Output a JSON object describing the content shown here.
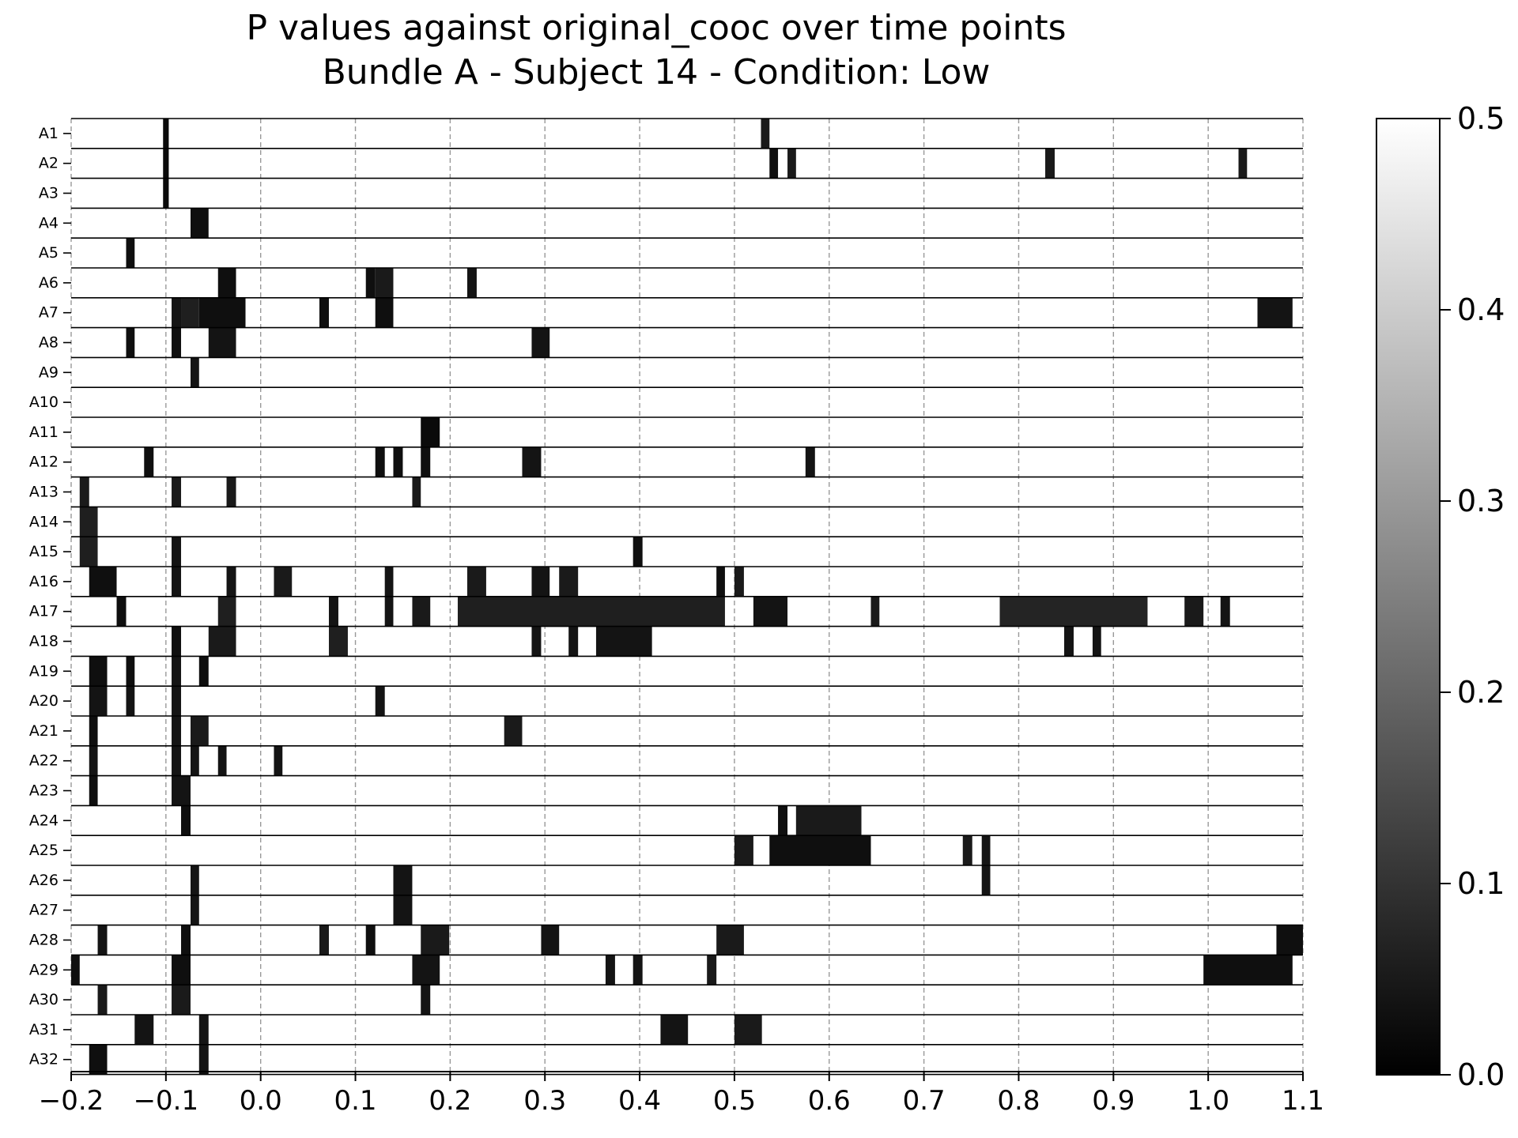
{
  "chart_data": {
    "type": "heatmap",
    "title": "P values against original_cooc over time points",
    "subtitle": "Bundle A - Subject 14 - Condition: Low",
    "xlabel": "",
    "ylabel": "",
    "xlim": [
      -0.2,
      1.1
    ],
    "xticks": [
      -0.2,
      -0.1,
      0.0,
      0.1,
      0.2,
      0.3,
      0.4,
      0.5,
      0.6,
      0.7,
      0.8,
      0.9,
      1.0,
      1.1
    ],
    "xtick_labels": [
      "−0.2",
      "−0.1",
      "0.0",
      "0.1",
      "0.2",
      "0.3",
      "0.4",
      "0.5",
      "0.6",
      "0.7",
      "0.8",
      "0.9",
      "1.0",
      "1.1"
    ],
    "grid": "vertical dashed",
    "colormap": "gray",
    "color_min": "#000000",
    "color_max": "#ffffff",
    "colorbar": {
      "range": [
        0.0,
        0.5
      ],
      "ticks": [
        0.0,
        0.1,
        0.2,
        0.3,
        0.4,
        0.5
      ],
      "tick_labels": [
        "0.0",
        "0.1",
        "0.2",
        "0.3",
        "0.4",
        "0.5"
      ]
    },
    "rows": [
      {
        "label": "A1",
        "cells": [
          [
            -0.103,
            -0.097,
            0.02
          ],
          [
            0.528,
            0.537,
            0.05
          ]
        ]
      },
      {
        "label": "A2",
        "cells": [
          [
            -0.103,
            -0.097,
            0.02
          ],
          [
            0.537,
            0.546,
            0.03
          ],
          [
            0.556,
            0.565,
            0.05
          ],
          [
            0.828,
            0.838,
            0.05
          ],
          [
            1.032,
            1.041,
            0.05
          ]
        ]
      },
      {
        "label": "A3",
        "cells": [
          [
            -0.103,
            -0.097,
            0.02
          ]
        ]
      },
      {
        "label": "A4",
        "cells": [
          [
            -0.074,
            -0.055,
            0.03
          ]
        ]
      },
      {
        "label": "A5",
        "cells": [
          [
            -0.142,
            -0.133,
            0.03
          ]
        ]
      },
      {
        "label": "A6",
        "cells": [
          [
            -0.045,
            -0.026,
            0.03
          ],
          [
            0.111,
            0.121,
            0.03
          ],
          [
            0.121,
            0.14,
            0.05
          ],
          [
            0.218,
            0.228,
            0.04
          ]
        ]
      },
      {
        "label": "A7",
        "cells": [
          [
            -0.094,
            -0.084,
            0.04
          ],
          [
            -0.084,
            -0.065,
            0.06
          ],
          [
            -0.065,
            -0.016,
            0.03
          ],
          [
            0.062,
            0.072,
            0.03
          ],
          [
            0.121,
            0.14,
            0.03
          ],
          [
            1.052,
            1.089,
            0.04
          ]
        ]
      },
      {
        "label": "A8",
        "cells": [
          [
            -0.142,
            -0.133,
            0.03
          ],
          [
            -0.094,
            -0.084,
            0.03
          ],
          [
            -0.055,
            -0.026,
            0.04
          ],
          [
            0.286,
            0.305,
            0.04
          ]
        ]
      },
      {
        "label": "A9",
        "cells": [
          [
            -0.074,
            -0.065,
            0.04
          ]
        ]
      },
      {
        "label": "A10",
        "cells": []
      },
      {
        "label": "A11",
        "cells": [
          [
            0.169,
            0.189,
            0.02
          ]
        ]
      },
      {
        "label": "A12",
        "cells": [
          [
            -0.123,
            -0.113,
            0.03
          ],
          [
            0.121,
            0.131,
            0.03
          ],
          [
            0.14,
            0.15,
            0.03
          ],
          [
            0.169,
            0.179,
            0.03
          ],
          [
            0.276,
            0.296,
            0.04
          ],
          [
            0.575,
            0.585,
            0.04
          ]
        ]
      },
      {
        "label": "A13",
        "cells": [
          [
            -0.191,
            -0.181,
            0.05
          ],
          [
            -0.094,
            -0.084,
            0.05
          ],
          [
            -0.036,
            -0.026,
            0.05
          ],
          [
            0.16,
            0.169,
            0.05
          ]
        ]
      },
      {
        "label": "A14",
        "cells": [
          [
            -0.191,
            -0.172,
            0.06
          ]
        ]
      },
      {
        "label": "A15",
        "cells": [
          [
            -0.191,
            -0.172,
            0.06
          ],
          [
            -0.094,
            -0.084,
            0.04
          ],
          [
            0.393,
            0.403,
            0.03
          ]
        ]
      },
      {
        "label": "A16",
        "cells": [
          [
            -0.181,
            -0.152,
            0.03
          ],
          [
            -0.094,
            -0.084,
            0.04
          ],
          [
            -0.036,
            -0.026,
            0.04
          ],
          [
            0.014,
            0.033,
            0.05
          ],
          [
            0.131,
            0.14,
            0.04
          ],
          [
            0.218,
            0.238,
            0.05
          ],
          [
            0.286,
            0.305,
            0.04
          ],
          [
            0.315,
            0.335,
            0.05
          ],
          [
            0.481,
            0.49,
            0.03
          ],
          [
            0.5,
            0.51,
            0.05
          ]
        ]
      },
      {
        "label": "A17",
        "cells": [
          [
            -0.152,
            -0.142,
            0.03
          ],
          [
            -0.045,
            -0.026,
            0.06
          ],
          [
            0.072,
            0.082,
            0.04
          ],
          [
            0.131,
            0.14,
            0.04
          ],
          [
            0.16,
            0.179,
            0.05
          ],
          [
            0.208,
            0.49,
            0.06
          ],
          [
            0.52,
            0.556,
            0.04
          ],
          [
            0.644,
            0.653,
            0.05
          ],
          [
            0.78,
            0.936,
            0.07
          ],
          [
            0.975,
            0.995,
            0.05
          ],
          [
            1.013,
            1.023,
            0.04
          ]
        ]
      },
      {
        "label": "A18",
        "cells": [
          [
            -0.094,
            -0.084,
            0.03
          ],
          [
            -0.055,
            -0.026,
            0.05
          ],
          [
            0.072,
            0.092,
            0.06
          ],
          [
            0.286,
            0.296,
            0.04
          ],
          [
            0.325,
            0.335,
            0.04
          ],
          [
            0.354,
            0.413,
            0.04
          ],
          [
            0.848,
            0.858,
            0.04
          ],
          [
            0.878,
            0.887,
            0.04
          ]
        ]
      },
      {
        "label": "A19",
        "cells": [
          [
            -0.181,
            -0.162,
            0.03
          ],
          [
            -0.142,
            -0.133,
            0.03
          ],
          [
            -0.094,
            -0.084,
            0.04
          ],
          [
            -0.065,
            -0.055,
            0.03
          ]
        ]
      },
      {
        "label": "A20",
        "cells": [
          [
            -0.181,
            -0.162,
            0.04
          ],
          [
            -0.142,
            -0.133,
            0.04
          ],
          [
            -0.094,
            -0.084,
            0.04
          ],
          [
            0.121,
            0.131,
            0.04
          ]
        ]
      },
      {
        "label": "A21",
        "cells": [
          [
            -0.181,
            -0.172,
            0.03
          ],
          [
            -0.094,
            -0.084,
            0.04
          ],
          [
            -0.074,
            -0.055,
            0.05
          ],
          [
            0.257,
            0.276,
            0.05
          ]
        ]
      },
      {
        "label": "A22",
        "cells": [
          [
            -0.181,
            -0.172,
            0.04
          ],
          [
            -0.094,
            -0.084,
            0.04
          ],
          [
            -0.074,
            -0.065,
            0.04
          ],
          [
            -0.045,
            -0.036,
            0.04
          ],
          [
            0.014,
            0.023,
            0.04
          ]
        ]
      },
      {
        "label": "A23",
        "cells": [
          [
            -0.181,
            -0.172,
            0.03
          ],
          [
            -0.094,
            -0.074,
            0.04
          ]
        ]
      },
      {
        "label": "A24",
        "cells": [
          [
            -0.084,
            -0.074,
            0.03
          ],
          [
            0.546,
            0.556,
            0.03
          ],
          [
            0.565,
            0.634,
            0.05
          ]
        ]
      },
      {
        "label": "A25",
        "cells": [
          [
            0.5,
            0.52,
            0.05
          ],
          [
            0.537,
            0.644,
            0.03
          ],
          [
            0.741,
            0.751,
            0.05
          ],
          [
            0.761,
            0.77,
            0.04
          ]
        ]
      },
      {
        "label": "A26",
        "cells": [
          [
            -0.074,
            -0.065,
            0.04
          ],
          [
            0.14,
            0.16,
            0.04
          ],
          [
            0.761,
            0.77,
            0.04
          ]
        ]
      },
      {
        "label": "A27",
        "cells": [
          [
            -0.074,
            -0.065,
            0.04
          ],
          [
            0.14,
            0.16,
            0.04
          ]
        ]
      },
      {
        "label": "A28",
        "cells": [
          [
            -0.172,
            -0.162,
            0.04
          ],
          [
            -0.084,
            -0.074,
            0.03
          ],
          [
            0.062,
            0.072,
            0.05
          ],
          [
            0.111,
            0.121,
            0.03
          ],
          [
            0.169,
            0.199,
            0.05
          ],
          [
            0.296,
            0.315,
            0.04
          ],
          [
            0.481,
            0.51,
            0.05
          ],
          [
            1.072,
            1.1,
            0.03
          ]
        ]
      },
      {
        "label": "A29",
        "cells": [
          [
            -0.2,
            -0.191,
            0.03
          ],
          [
            -0.094,
            -0.074,
            0.03
          ],
          [
            0.16,
            0.189,
            0.04
          ],
          [
            0.364,
            0.374,
            0.04
          ],
          [
            0.393,
            0.403,
            0.04
          ],
          [
            0.471,
            0.481,
            0.05
          ],
          [
            0.995,
            1.089,
            0.03
          ]
        ]
      },
      {
        "label": "A30",
        "cells": [
          [
            -0.172,
            -0.162,
            0.05
          ],
          [
            -0.094,
            -0.074,
            0.05
          ],
          [
            0.169,
            0.179,
            0.04
          ]
        ]
      },
      {
        "label": "A31",
        "cells": [
          [
            -0.133,
            -0.113,
            0.04
          ],
          [
            -0.065,
            -0.055,
            0.04
          ],
          [
            0.422,
            0.451,
            0.04
          ],
          [
            0.5,
            0.529,
            0.05
          ]
        ]
      },
      {
        "label": "A32",
        "cells": [
          [
            -0.181,
            -0.162,
            0.03
          ],
          [
            -0.065,
            -0.055,
            0.04
          ]
        ]
      }
    ]
  }
}
